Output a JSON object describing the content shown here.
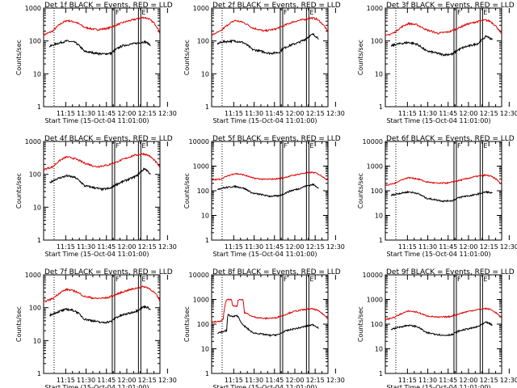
{
  "chart_data": {
    "type": "line",
    "panels": [
      {
        "title": "Det 1f BLACK = Events, RED = LLD",
        "red": [
          [
            0,
            150
          ],
          [
            0.08,
            200
          ],
          [
            0.15,
            340
          ],
          [
            0.2,
            420
          ],
          [
            0.27,
            380
          ],
          [
            0.35,
            260
          ],
          [
            0.45,
            220
          ],
          [
            0.55,
            240
          ],
          [
            0.62,
            300
          ],
          [
            0.7,
            380
          ],
          [
            0.78,
            450
          ],
          [
            0.86,
            520
          ],
          [
            0.9,
            480
          ],
          [
            0.96,
            320
          ],
          [
            1,
            170
          ]
        ],
        "black": [
          [
            0,
            55
          ],
          [
            0.02,
            60
          ],
          [
            0.1,
            80
          ],
          [
            0.2,
            100
          ],
          [
            0.27,
            90
          ],
          [
            0.35,
            48
          ],
          [
            0.5,
            40
          ],
          [
            0.58,
            42
          ],
          [
            0.62,
            55
          ],
          [
            0.68,
            72
          ],
          [
            0.75,
            80
          ],
          [
            0.8,
            85
          ],
          [
            0.87,
            95
          ],
          [
            0.92,
            75
          ]
        ]
      },
      {
        "title": "Det 2f BLACK = Events, RED = LLD",
        "red": [
          [
            0,
            150
          ],
          [
            0.08,
            200
          ],
          [
            0.15,
            330
          ],
          [
            0.2,
            420
          ],
          [
            0.27,
            370
          ],
          [
            0.35,
            250
          ],
          [
            0.45,
            200
          ],
          [
            0.55,
            230
          ],
          [
            0.62,
            290
          ],
          [
            0.7,
            380
          ],
          [
            0.78,
            440
          ],
          [
            0.86,
            500
          ],
          [
            0.9,
            470
          ],
          [
            0.96,
            310
          ],
          [
            1,
            180
          ]
        ],
        "black": [
          [
            0,
            30
          ],
          [
            0.02,
            75
          ],
          [
            0.1,
            95
          ],
          [
            0.2,
            100
          ],
          [
            0.27,
            90
          ],
          [
            0.35,
            55
          ],
          [
            0.5,
            42
          ],
          [
            0.58,
            45
          ],
          [
            0.62,
            60
          ],
          [
            0.68,
            75
          ],
          [
            0.75,
            90
          ],
          [
            0.8,
            110
          ],
          [
            0.87,
            160
          ],
          [
            0.92,
            120
          ]
        ]
      },
      {
        "title": "Det 3f BLACK = Events, RED = LLD",
        "red": [
          [
            0,
            140
          ],
          [
            0.08,
            180
          ],
          [
            0.15,
            280
          ],
          [
            0.2,
            340
          ],
          [
            0.27,
            310
          ],
          [
            0.35,
            220
          ],
          [
            0.45,
            170
          ],
          [
            0.55,
            190
          ],
          [
            0.62,
            240
          ],
          [
            0.7,
            320
          ],
          [
            0.78,
            380
          ],
          [
            0.86,
            430
          ],
          [
            0.9,
            400
          ],
          [
            0.96,
            260
          ],
          [
            1,
            150
          ]
        ],
        "black": [
          [
            0,
            18
          ],
          [
            0.02,
            65
          ],
          [
            0.1,
            80
          ],
          [
            0.2,
            90
          ],
          [
            0.27,
            80
          ],
          [
            0.35,
            50
          ],
          [
            0.5,
            38
          ],
          [
            0.58,
            40
          ],
          [
            0.62,
            52
          ],
          [
            0.68,
            65
          ],
          [
            0.75,
            75
          ],
          [
            0.8,
            85
          ],
          [
            0.87,
            140
          ],
          [
            0.92,
            110
          ]
        ]
      },
      {
        "title": "Det 4f BLACK = Events, RED = LLD",
        "red": [
          [
            0,
            140
          ],
          [
            0.08,
            170
          ],
          [
            0.15,
            280
          ],
          [
            0.2,
            340
          ],
          [
            0.27,
            300
          ],
          [
            0.35,
            220
          ],
          [
            0.45,
            170
          ],
          [
            0.55,
            190
          ],
          [
            0.62,
            230
          ],
          [
            0.7,
            300
          ],
          [
            0.78,
            380
          ],
          [
            0.86,
            420
          ],
          [
            0.9,
            380
          ],
          [
            0.96,
            250
          ],
          [
            1,
            160
          ]
        ],
        "black": [
          [
            0,
            18
          ],
          [
            0.02,
            45
          ],
          [
            0.1,
            70
          ],
          [
            0.2,
            90
          ],
          [
            0.27,
            80
          ],
          [
            0.35,
            45
          ],
          [
            0.5,
            35
          ],
          [
            0.58,
            38
          ],
          [
            0.62,
            48
          ],
          [
            0.68,
            60
          ],
          [
            0.75,
            75
          ],
          [
            0.8,
            90
          ],
          [
            0.87,
            150
          ],
          [
            0.92,
            100
          ]
        ]
      },
      {
        "title": "Det 5f BLACK = Events, RED = LLD",
        "red": [
          [
            0,
            270
          ],
          [
            0.08,
            300
          ],
          [
            0.15,
            420
          ],
          [
            0.2,
            500
          ],
          [
            0.27,
            450
          ],
          [
            0.35,
            330
          ],
          [
            0.45,
            290
          ],
          [
            0.55,
            300
          ],
          [
            0.62,
            340
          ],
          [
            0.7,
            420
          ],
          [
            0.78,
            500
          ],
          [
            0.86,
            560
          ],
          [
            0.9,
            520
          ],
          [
            0.96,
            360
          ],
          [
            1,
            260
          ]
        ],
        "black": [
          [
            0,
            25
          ],
          [
            0.02,
            110
          ],
          [
            0.1,
            130
          ],
          [
            0.2,
            150
          ],
          [
            0.27,
            130
          ],
          [
            0.35,
            80
          ],
          [
            0.5,
            60
          ],
          [
            0.58,
            62
          ],
          [
            0.62,
            75
          ],
          [
            0.68,
            100
          ],
          [
            0.75,
            120
          ],
          [
            0.8,
            150
          ],
          [
            0.87,
            180
          ],
          [
            0.92,
            130
          ]
        ]
      },
      {
        "title": "Det 6f BLACK = Events, RED = LLD",
        "red": [
          [
            0,
            160
          ],
          [
            0.08,
            200
          ],
          [
            0.15,
            290
          ],
          [
            0.2,
            340
          ],
          [
            0.27,
            310
          ],
          [
            0.35,
            230
          ],
          [
            0.45,
            200
          ],
          [
            0.55,
            210
          ],
          [
            0.62,
            250
          ],
          [
            0.7,
            310
          ],
          [
            0.78,
            380
          ],
          [
            0.86,
            430
          ],
          [
            0.9,
            400
          ],
          [
            0.96,
            280
          ],
          [
            1,
            170
          ]
        ],
        "black": [
          [
            0,
            15
          ],
          [
            0.02,
            60
          ],
          [
            0.1,
            75
          ],
          [
            0.2,
            90
          ],
          [
            0.27,
            80
          ],
          [
            0.35,
            50
          ],
          [
            0.5,
            38
          ],
          [
            0.58,
            40
          ],
          [
            0.62,
            50
          ],
          [
            0.68,
            60
          ],
          [
            0.75,
            65
          ],
          [
            0.8,
            75
          ],
          [
            0.87,
            90
          ],
          [
            0.92,
            80
          ]
        ]
      },
      {
        "title": "Det 7f BLACK = Events, RED = LLD",
        "red": [
          [
            0,
            150
          ],
          [
            0.08,
            190
          ],
          [
            0.15,
            300
          ],
          [
            0.2,
            360
          ],
          [
            0.27,
            320
          ],
          [
            0.35,
            220
          ],
          [
            0.45,
            190
          ],
          [
            0.55,
            200
          ],
          [
            0.62,
            250
          ],
          [
            0.7,
            320
          ],
          [
            0.78,
            380
          ],
          [
            0.86,
            440
          ],
          [
            0.9,
            400
          ],
          [
            0.96,
            270
          ],
          [
            1,
            160
          ]
        ],
        "black": [
          [
            0,
            20
          ],
          [
            0.02,
            50
          ],
          [
            0.1,
            70
          ],
          [
            0.2,
            90
          ],
          [
            0.27,
            80
          ],
          [
            0.35,
            45
          ],
          [
            0.5,
            35
          ],
          [
            0.58,
            38
          ],
          [
            0.62,
            50
          ],
          [
            0.68,
            60
          ],
          [
            0.75,
            70
          ],
          [
            0.8,
            80
          ],
          [
            0.87,
            110
          ],
          [
            0.92,
            90
          ]
        ]
      },
      {
        "title": "Det 8f BLACK = Events, RED = LLD",
        "red": [
          [
            0,
            120
          ],
          [
            0.08,
            130
          ],
          [
            0.1,
            160
          ],
          [
            0.13,
            1000
          ],
          [
            0.17,
            1000
          ],
          [
            0.18,
            550
          ],
          [
            0.22,
            550
          ],
          [
            0.23,
            1000
          ],
          [
            0.27,
            1000
          ],
          [
            0.28,
            300
          ],
          [
            0.35,
            200
          ],
          [
            0.45,
            170
          ],
          [
            0.55,
            180
          ],
          [
            0.62,
            230
          ],
          [
            0.7,
            320
          ],
          [
            0.78,
            380
          ],
          [
            0.86,
            420
          ],
          [
            0.9,
            380
          ],
          [
            0.96,
            250
          ],
          [
            1,
            160
          ]
        ],
        "black": [
          [
            0,
            12
          ],
          [
            0.02,
            40
          ],
          [
            0.1,
            50
          ],
          [
            0.13,
            55
          ],
          [
            0.14,
            240
          ],
          [
            0.18,
            200
          ],
          [
            0.22,
            220
          ],
          [
            0.26,
            100
          ],
          [
            0.3,
            70
          ],
          [
            0.35,
            45
          ],
          [
            0.5,
            35
          ],
          [
            0.58,
            38
          ],
          [
            0.62,
            50
          ],
          [
            0.68,
            60
          ],
          [
            0.75,
            70
          ],
          [
            0.8,
            80
          ],
          [
            0.87,
            95
          ],
          [
            0.92,
            70
          ]
        ]
      },
      {
        "title": "Det 9f BLACK = Events, RED = LLD",
        "red": [
          [
            0,
            150
          ],
          [
            0.08,
            190
          ],
          [
            0.15,
            280
          ],
          [
            0.2,
            340
          ],
          [
            0.27,
            310
          ],
          [
            0.35,
            220
          ],
          [
            0.45,
            190
          ],
          [
            0.55,
            200
          ],
          [
            0.62,
            250
          ],
          [
            0.7,
            320
          ],
          [
            0.78,
            380
          ],
          [
            0.86,
            430
          ],
          [
            0.9,
            400
          ],
          [
            0.96,
            270
          ],
          [
            1,
            170
          ]
        ],
        "black": [
          [
            0,
            18
          ],
          [
            0.02,
            55
          ],
          [
            0.1,
            72
          ],
          [
            0.2,
            90
          ],
          [
            0.27,
            80
          ],
          [
            0.35,
            45
          ],
          [
            0.5,
            35
          ],
          [
            0.58,
            38
          ],
          [
            0.62,
            50
          ],
          [
            0.68,
            60
          ],
          [
            0.75,
            70
          ],
          [
            0.8,
            80
          ],
          [
            0.87,
            120
          ],
          [
            0.92,
            90
          ]
        ]
      }
    ],
    "xlabel": "Start Time (15-Oct-04 11:01:00)",
    "ylabel": "Counts/sec",
    "xticks": [
      "11:15",
      "11:30",
      "11:45",
      "12:00",
      "12:15",
      "12:30"
    ],
    "yticks_small": [
      "1",
      "10",
      "100",
      "1000"
    ],
    "yticks_large": [
      "1",
      "10",
      "100",
      "1000",
      "10000"
    ],
    "markers": [
      "F",
      "E"
    ],
    "yscale": "log",
    "series_colors": {
      "black": "#000000",
      "red": "#e00000"
    }
  }
}
